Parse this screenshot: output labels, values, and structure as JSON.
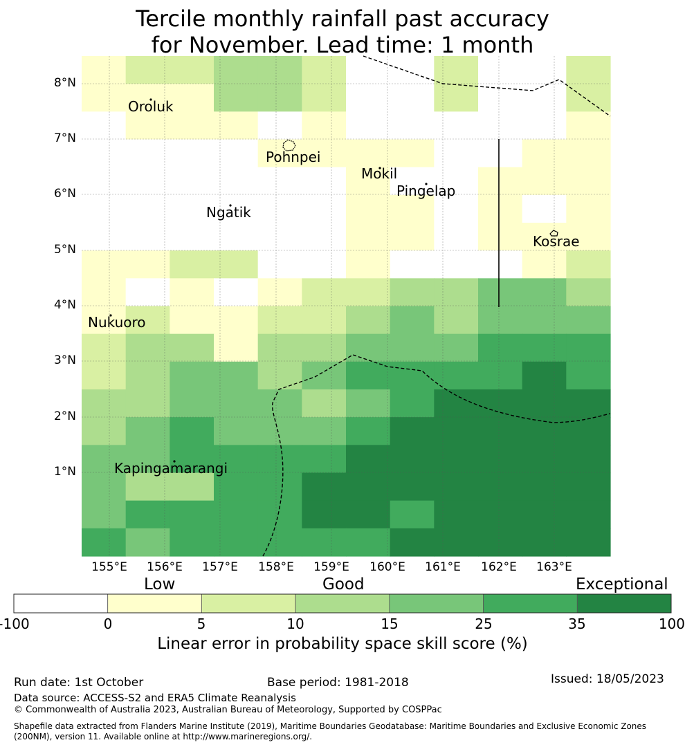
{
  "title": {
    "line1": "Tercile monthly rainfall past accuracy",
    "line2": "for November. Lead time: 1 month"
  },
  "map": {
    "lat_labels": [
      "8°N",
      "7°N",
      "6°N",
      "5°N",
      "4°N",
      "3°N",
      "2°N",
      "1°N"
    ],
    "lon_labels": [
      "155°E",
      "156°E",
      "157°E",
      "158°E",
      "159°E",
      "160°E",
      "161°E",
      "162°E",
      "163°E"
    ],
    "places": [
      {
        "name": "Oroluk"
      },
      {
        "name": "Pohnpei"
      },
      {
        "name": "Mokil"
      },
      {
        "name": "Pingelap"
      },
      {
        "name": "Ngatik"
      },
      {
        "name": "Kosrae"
      },
      {
        "name": "Nukuoro"
      },
      {
        "name": "Kapingamarangi"
      }
    ],
    "grid_color_classes": [
      [
        1,
        2,
        2,
        3,
        3,
        2,
        0,
        0,
        2,
        0,
        0,
        2
      ],
      [
        1,
        1,
        1,
        3,
        3,
        2,
        0,
        0,
        2,
        0,
        0,
        2
      ],
      [
        0,
        1,
        1,
        1,
        0,
        1,
        0,
        0,
        0,
        0,
        0,
        1
      ],
      [
        0,
        0,
        0,
        0,
        1,
        1,
        1,
        1,
        0,
        0,
        1,
        1
      ],
      [
        0,
        0,
        0,
        0,
        0,
        0,
        1,
        0,
        0,
        1,
        1,
        1
      ],
      [
        0,
        0,
        0,
        0,
        0,
        0,
        1,
        1,
        0,
        1,
        0,
        1
      ],
      [
        0,
        0,
        0,
        0,
        0,
        0,
        1,
        1,
        0,
        1,
        1,
        1
      ],
      [
        1,
        1,
        2,
        2,
        0,
        0,
        1,
        0,
        0,
        0,
        1,
        2
      ],
      [
        1,
        0,
        1,
        0,
        1,
        2,
        2,
        3,
        3,
        4,
        4,
        3
      ],
      [
        1,
        2,
        1,
        1,
        2,
        2,
        3,
        4,
        3,
        4,
        4,
        4
      ],
      [
        2,
        3,
        3,
        1,
        3,
        3,
        4,
        4,
        4,
        5,
        5,
        5
      ],
      [
        2,
        3,
        4,
        4,
        3,
        4,
        5,
        5,
        5,
        5,
        6,
        5
      ],
      [
        3,
        3,
        4,
        4,
        4,
        3,
        4,
        5,
        6,
        6,
        6,
        6
      ],
      [
        3,
        4,
        5,
        4,
        4,
        4,
        5,
        6,
        6,
        6,
        6,
        6
      ],
      [
        4,
        4,
        5,
        5,
        5,
        5,
        6,
        6,
        6,
        6,
        6,
        6
      ],
      [
        4,
        3,
        3,
        5,
        5,
        6,
        6,
        6,
        6,
        6,
        6,
        6
      ],
      [
        4,
        5,
        5,
        5,
        5,
        6,
        6,
        5,
        6,
        6,
        6,
        6
      ],
      [
        5,
        4,
        5,
        5,
        5,
        5,
        5,
        6,
        6,
        6,
        6,
        6
      ]
    ]
  },
  "colorbar": {
    "categories": [
      "Low",
      "Good",
      "Exceptional"
    ],
    "ticks": [
      "-100",
      "0",
      "5",
      "10",
      "15",
      "25",
      "35",
      "100"
    ],
    "colors": [
      "#ffffff",
      "#ffffcc",
      "#d9f0a3",
      "#addd8e",
      "#78c679",
      "#41ab5d",
      "#238443"
    ],
    "label": "Linear error in probability space skill score (%)"
  },
  "footer": {
    "run_date": "Run date: 1st October",
    "base_period": "Base period: 1981-2018",
    "issued": "Issued: 18/05/2023",
    "data_source": "Data source: ACCESS-S2 and ERA5 Climate Reanalysis",
    "copyright": "© Commonwealth of Australia 2023, Australian Bureau of Meteorology, Supported by COSPPac",
    "shapefile1": "Shapefile data extracted from Flanders Marine Institute (2019), Maritime Boundaries Geodatabase: Maritime Boundaries and Exclusive Economic Zones",
    "shapefile2": "(200NM), version 11. Available online at http://www.marineregions.org/."
  }
}
